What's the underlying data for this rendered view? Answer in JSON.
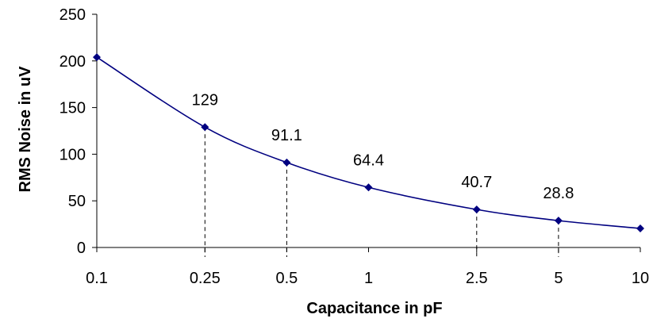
{
  "chart_data": {
    "type": "line",
    "x_scale": "log",
    "xlabel": "Capacitance in pF",
    "ylabel": "RMS Noise in uV",
    "ylim": [
      0,
      250
    ],
    "y_ticks": [
      "0",
      "50",
      "100",
      "150",
      "200",
      "250"
    ],
    "x_ticks": [
      {
        "value": 0.1,
        "label": "0.1"
      },
      {
        "value": 0.25,
        "label": "0.25"
      },
      {
        "value": 0.5,
        "label": "0.5"
      },
      {
        "value": 1,
        "label": "1"
      },
      {
        "value": 2.5,
        "label": "2.5"
      },
      {
        "value": 5,
        "label": "5"
      },
      {
        "value": 10,
        "label": "10"
      }
    ],
    "series": [
      {
        "color": "#000080",
        "points": [
          {
            "x": 0.1,
            "y": 204
          },
          {
            "x": 0.25,
            "y": 129,
            "label": "129"
          },
          {
            "x": 0.5,
            "y": 91.1,
            "label": "91.1"
          },
          {
            "x": 1,
            "y": 64.4,
            "label": "64.4"
          },
          {
            "x": 2.5,
            "y": 40.7,
            "label": "40.7"
          },
          {
            "x": 5,
            "y": 28.8,
            "label": "28.8"
          },
          {
            "x": 10,
            "y": 20.4
          }
        ]
      }
    ],
    "drop_lines": [
      0.25,
      0.5,
      2.5,
      5
    ],
    "grid": false,
    "legend": "none"
  }
}
